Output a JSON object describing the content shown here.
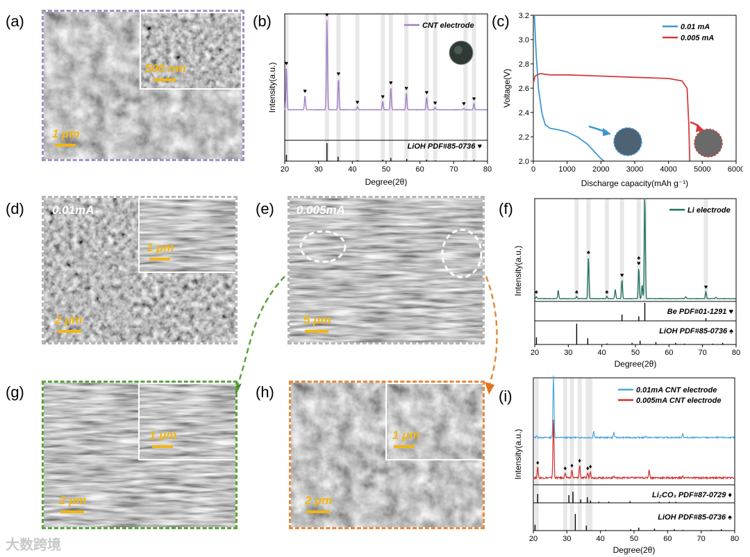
{
  "panels": {
    "a": {
      "label": "(a)",
      "scale_main": "1 μm",
      "scale_inset": "500 nm",
      "border_color": "#a58fc7"
    },
    "b": {
      "label": "(b)"
    },
    "c": {
      "label": "(c)"
    },
    "d": {
      "label": "(d)",
      "condition": "0.01mA",
      "scale_main": "2 μm",
      "scale_inset": "1 μm",
      "border_color": "#b5b5b5"
    },
    "e": {
      "label": "(e)",
      "condition": "0.005mA",
      "scale_main": "5 μm",
      "border_color": "#b5b5b5"
    },
    "f": {
      "label": "(f)"
    },
    "g": {
      "label": "(g)",
      "scale_main": "2 μm",
      "scale_inset": "1 μm",
      "border_color": "#5aa33c"
    },
    "h": {
      "label": "(h)",
      "scale_main": "2 μm",
      "scale_inset": "1 μm",
      "border_color": "#e58a3c"
    },
    "i": {
      "label": "(i)"
    }
  },
  "watermark": "大数跨境",
  "chart_data": [
    {
      "id": "b",
      "type": "line",
      "title": "",
      "xlabel": "Degree(2θ)",
      "ylabel": "Intensity(a.u.)",
      "xlim": [
        20,
        80
      ],
      "xticks": [
        20,
        30,
        40,
        50,
        60,
        70,
        80
      ],
      "series": [
        {
          "name": "CNT electrode",
          "color": "#a27fc6",
          "peaks": [
            [
              20.5,
              60
            ],
            [
              26,
              20
            ],
            [
              32.5,
              130
            ],
            [
              35.9,
              45
            ],
            [
              41.5,
              4
            ],
            [
              49,
              12
            ],
            [
              51.4,
              32
            ],
            [
              56,
              24
            ],
            [
              62,
              18
            ],
            [
              64.5,
              3
            ],
            [
              73,
              2
            ],
            [
              76,
              9
            ]
          ]
        }
      ],
      "reference": {
        "label": "LiOH PDF#85-0736",
        "symbol": "♥",
        "sticks": [
          [
            20.5,
            0.35
          ],
          [
            32.5,
            1.0
          ],
          [
            35.8,
            0.25
          ],
          [
            41.5,
            0.05
          ],
          [
            49,
            0.08
          ],
          [
            51.4,
            0.18
          ],
          [
            56.1,
            0.12
          ],
          [
            62,
            0.08
          ],
          [
            64.6,
            0.04
          ],
          [
            73,
            0.04
          ],
          [
            76,
            0.08
          ]
        ]
      },
      "markers": [
        20.5,
        26,
        32.5,
        35.9,
        41.5,
        49,
        51.4,
        56,
        62,
        64.5,
        73,
        76
      ],
      "bands": [
        20.5,
        32.5,
        35.9,
        41.5,
        49,
        51.4,
        56,
        62,
        64.5,
        73.5,
        76
      ]
    },
    {
      "id": "c",
      "type": "line",
      "title": "",
      "xlabel": "Discharge capacity(mAh g⁻¹)",
      "ylabel": "Voltage(V)",
      "xlim": [
        0,
        6000
      ],
      "ylim": [
        2.0,
        3.2
      ],
      "xticks": [
        0,
        1000,
        2000,
        3000,
        4000,
        5000,
        6000
      ],
      "yticks": [
        2.0,
        2.2,
        2.4,
        2.6,
        2.8,
        3.0,
        3.2
      ],
      "series": [
        {
          "name": "0.01 mA",
          "color": "#3c97cf",
          "x": [
            30,
            80,
            150,
            250,
            350,
            500,
            700,
            1000,
            1300,
            1600,
            1800,
            2000,
            2100
          ],
          "y": [
            3.2,
            2.9,
            2.6,
            2.4,
            2.3,
            2.27,
            2.26,
            2.24,
            2.2,
            2.14,
            2.08,
            2.02,
            2.0
          ]
        },
        {
          "name": "0.005 mA",
          "color": "#d63a3a",
          "x": [
            0,
            50,
            200,
            500,
            1000,
            2000,
            3000,
            4000,
            4400,
            4550,
            4600,
            4620,
            4630
          ],
          "y": [
            2.64,
            2.7,
            2.72,
            2.71,
            2.71,
            2.7,
            2.69,
            2.68,
            2.66,
            2.6,
            2.3,
            2.1,
            2.0
          ]
        }
      ]
    },
    {
      "id": "f",
      "type": "line",
      "title": "",
      "xlabel": "Degree(2θ)",
      "ylabel": "Intensity(a.u.)",
      "xlim": [
        20,
        80
      ],
      "xticks": [
        20,
        30,
        40,
        50,
        60,
        70,
        80
      ],
      "series": [
        {
          "name": "Li electrode",
          "color": "#1a6e5e",
          "peaks": [
            [
              20.5,
              3
            ],
            [
              27,
              12
            ],
            [
              32.5,
              3
            ],
            [
              36,
              60
            ],
            [
              41.5,
              3
            ],
            [
              44,
              13
            ],
            [
              46,
              27
            ],
            [
              51,
              44
            ],
            [
              52,
              20
            ],
            [
              52.8,
              148
            ],
            [
              65,
              3
            ],
            [
              71,
              10
            ],
            [
              74,
              2
            ]
          ]
        }
      ],
      "reference_top": {
        "label": "Be PDF#01-1291",
        "symbol": "♥",
        "sticks": [
          [
            46,
            0.35
          ],
          [
            51,
            0.25
          ],
          [
            52.8,
            1.0
          ],
          [
            71,
            0.15
          ]
        ]
      },
      "reference_bottom": {
        "label": "LiOH PDF#85-0736",
        "symbol": "♠",
        "sticks": [
          [
            20.5,
            0.35
          ],
          [
            32.5,
            1.0
          ],
          [
            35.8,
            0.3
          ],
          [
            41.5,
            0.05
          ],
          [
            49,
            0.08
          ],
          [
            51.4,
            0.18
          ],
          [
            56.1,
            0.12
          ],
          [
            62,
            0.08
          ],
          [
            64.6,
            0.04
          ],
          [
            73,
            0.04
          ],
          [
            76,
            0.08
          ]
        ]
      },
      "markers_heart": [
        46,
        51,
        52.8,
        71
      ],
      "markers_spade": [
        20.5,
        32.5,
        36,
        41.5,
        51
      ],
      "bands": [
        32.5,
        36,
        41.5,
        46,
        51,
        52.8,
        71
      ]
    },
    {
      "id": "i",
      "type": "line",
      "title": "",
      "xlabel": "Degree(2θ)",
      "ylabel": "Intensity(a.u.)",
      "xlim": [
        20,
        80
      ],
      "xticks": [
        20,
        30,
        40,
        50,
        60,
        70,
        80
      ],
      "series": [
        {
          "name": "0.01mA CNT electrode",
          "color": "#4aa6db",
          "peaks": [
            [
              21,
              6
            ],
            [
              26,
              200
            ],
            [
              38,
              20
            ],
            [
              44,
              16
            ],
            [
              53.5,
              5
            ],
            [
              64.5,
              14
            ]
          ]
        },
        {
          "name": "0.005mA CNT electrode",
          "color": "#d22c2c",
          "peaks": [
            [
              21.3,
              25
            ],
            [
              26,
              140
            ],
            [
              29.5,
              12
            ],
            [
              31.5,
              18
            ],
            [
              33.8,
              30
            ],
            [
              36.2,
              12
            ],
            [
              37,
              16
            ],
            [
              44,
              4
            ],
            [
              54.5,
              20
            ],
            [
              64.5,
              3
            ]
          ]
        }
      ],
      "reference_top": {
        "label": "Li₂CO₃ PDF#87-0729",
        "symbol": "♦",
        "sticks": [
          [
            21.3,
            0.8
          ],
          [
            30.6,
            0.7
          ],
          [
            31.8,
            1.0
          ],
          [
            34.1,
            0.3
          ],
          [
            36.1,
            0.5
          ],
          [
            37,
            0.2
          ],
          [
            39.5,
            0.1
          ],
          [
            42.5,
            0.1
          ],
          [
            48.8,
            0.15
          ],
          [
            57.5,
            0.1
          ],
          [
            60.5,
            0.1
          ],
          [
            62.5,
            0.1
          ]
        ]
      },
      "reference_bottom": {
        "label": "LiOH PDF#85-0736",
        "symbol": "♠",
        "sticks": [
          [
            20.5,
            0.35
          ],
          [
            32.5,
            1.0
          ],
          [
            35.8,
            0.3
          ],
          [
            41.5,
            0.05
          ],
          [
            49,
            0.08
          ],
          [
            51.4,
            0.18
          ],
          [
            56.1,
            0.12
          ],
          [
            62,
            0.08
          ],
          [
            64.6,
            0.04
          ],
          [
            73,
            0.04
          ],
          [
            76,
            0.08
          ]
        ]
      },
      "markers": [
        21.3,
        29.5,
        31.5,
        33.8,
        36.2,
        37
      ],
      "bands": [
        21,
        29.5,
        31.5,
        33.8,
        36.2,
        37
      ]
    }
  ]
}
